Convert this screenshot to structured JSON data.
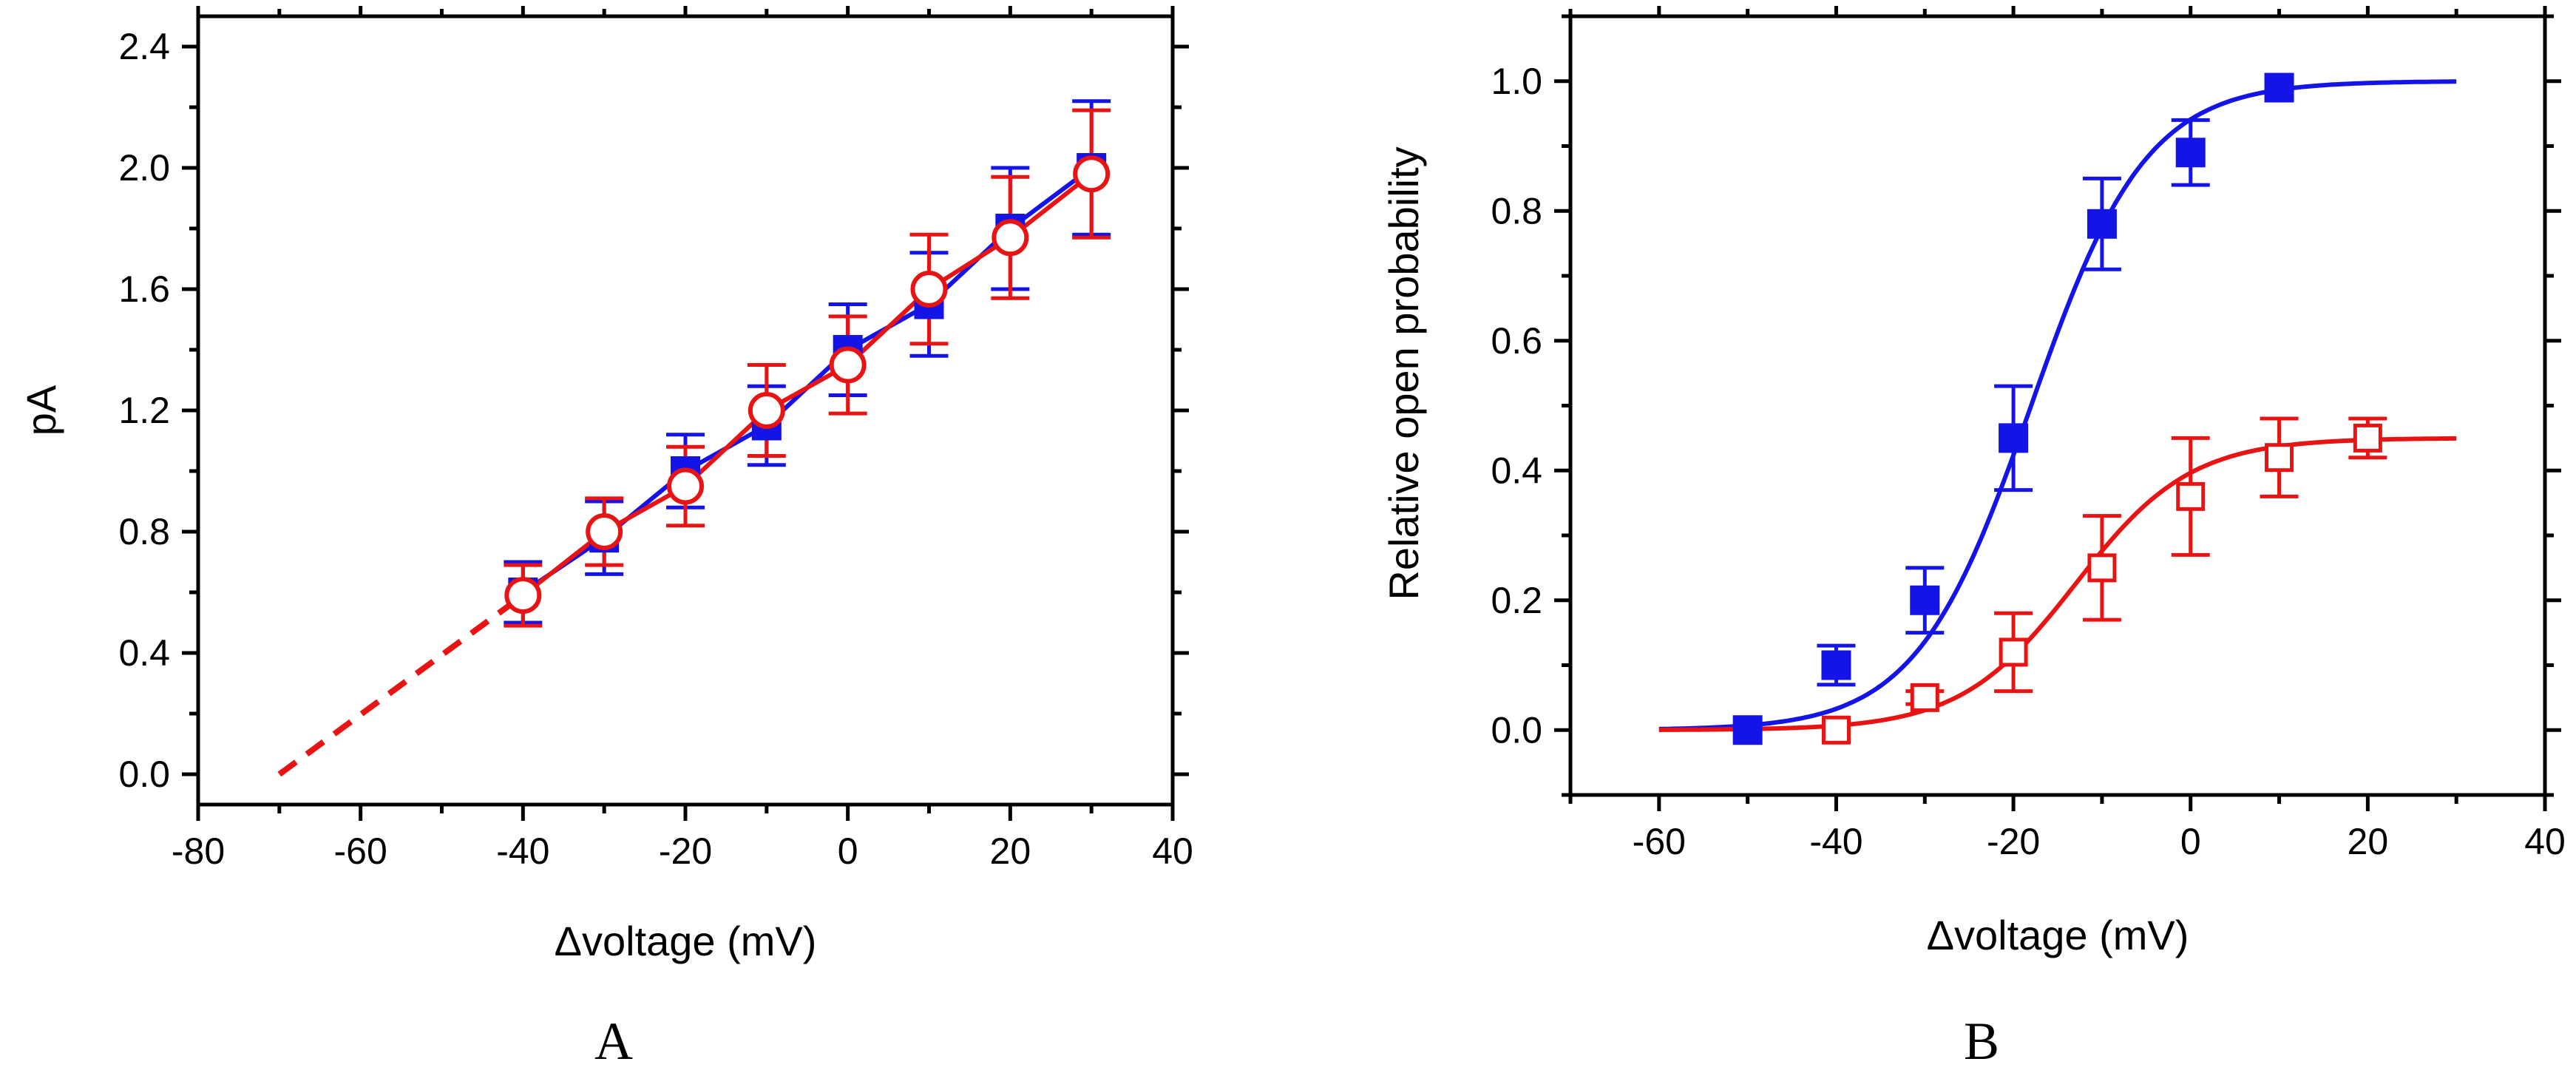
{
  "chart_data": [
    {
      "panel_label": "A",
      "type": "line",
      "xlabel": "Δvoltage (mV)",
      "ylabel": "pA",
      "xlim": [
        -80,
        40
      ],
      "ylim": [
        -0.1,
        2.5
      ],
      "x_ticks": [
        -80,
        -60,
        -40,
        -20,
        0,
        20,
        40
      ],
      "y_ticks": [
        0.0,
        0.4,
        0.8,
        1.2,
        1.6,
        2.0,
        2.4
      ],
      "x_tick_labels": [
        "-80",
        "-60",
        "-40",
        "-20",
        "0",
        "20",
        "40"
      ],
      "y_tick_labels": [
        "0.0",
        "0.4",
        "0.8",
        "1.2",
        "1.6",
        "2.0",
        "2.4"
      ],
      "series": [
        {
          "name": "filled squares (blue)",
          "color": "#1414e6",
          "marker": "square-filled",
          "x": [
            -40,
            -30,
            -20,
            -10,
            0,
            10,
            20,
            30
          ],
          "y": [
            0.6,
            0.78,
            1.0,
            1.15,
            1.4,
            1.55,
            1.8,
            2.0
          ],
          "err": [
            0.1,
            0.12,
            0.12,
            0.13,
            0.15,
            0.17,
            0.2,
            0.22
          ]
        },
        {
          "name": "open circles (red)",
          "color": "#e81414",
          "marker": "circle-open",
          "x": [
            -40,
            -30,
            -20,
            -10,
            0,
            10,
            20,
            30
          ],
          "y": [
            0.59,
            0.8,
            0.95,
            1.2,
            1.35,
            1.6,
            1.77,
            1.98
          ],
          "err": [
            0.1,
            0.11,
            0.13,
            0.15,
            0.16,
            0.18,
            0.2,
            0.21
          ]
        }
      ],
      "extrapolation": {
        "color": "#e81414",
        "x": [
          -70,
          -40
        ],
        "y": [
          0.0,
          0.59
        ],
        "style": "dashed"
      }
    },
    {
      "panel_label": "B",
      "type": "scatter",
      "xlabel": "Δvoltage (mV)",
      "ylabel": "Relative  open probability",
      "xlim": [
        -70,
        40
      ],
      "ylim": [
        -0.1,
        1.1
      ],
      "x_ticks": [
        -60,
        -40,
        -20,
        0,
        20,
        40
      ],
      "y_ticks": [
        0.0,
        0.2,
        0.4,
        0.6,
        0.8,
        1.0
      ],
      "x_tick_labels": [
        "-60",
        "-40",
        "-20",
        "0",
        "20",
        "40"
      ],
      "y_tick_labels": [
        "0.0",
        "0.2",
        "0.4",
        "0.6",
        "0.8",
        "1.0"
      ],
      "series": [
        {
          "name": "filled squares (blue)",
          "color": "#1414e6",
          "marker": "square-filled",
          "x": [
            -50,
            -40,
            -30,
            -20,
            -10,
            0,
            10
          ],
          "y": [
            0.0,
            0.1,
            0.2,
            0.45,
            0.78,
            0.89,
            0.99
          ],
          "err": [
            0,
            0.03,
            0.05,
            0.08,
            0.07,
            0.05,
            0
          ],
          "fit": {
            "model": "boltzmann",
            "amp": 1.0,
            "v_half": -18.0,
            "slope": 6.5,
            "x_range": [
              -60,
              30
            ]
          }
        },
        {
          "name": "open squares (red)",
          "color": "#e81414",
          "marker": "square-open",
          "x": [
            -40,
            -30,
            -20,
            -10,
            0,
            10,
            20
          ],
          "y": [
            0.0,
            0.05,
            0.12,
            0.25,
            0.36,
            0.42,
            0.45
          ],
          "err": [
            0,
            0.01,
            0.06,
            0.08,
            0.09,
            0.06,
            0.03
          ],
          "fit": {
            "model": "boltzmann",
            "amp": 0.45,
            "v_half": -13.0,
            "slope": 6.5,
            "x_range": [
              -60,
              30
            ]
          }
        }
      ]
    }
  ]
}
